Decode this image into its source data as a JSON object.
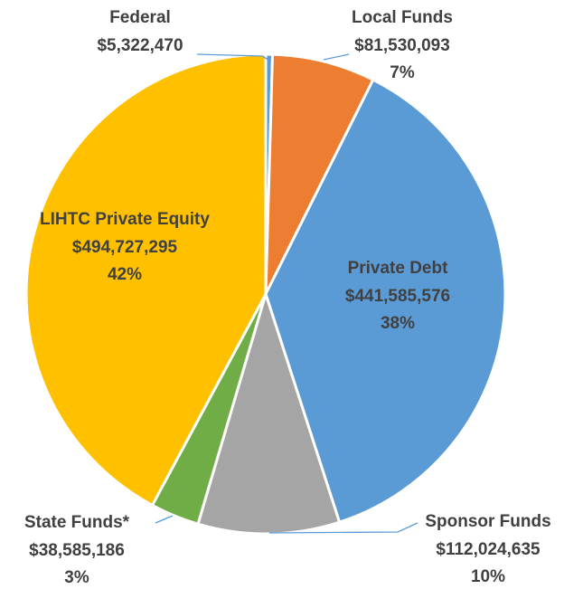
{
  "chart_data": {
    "type": "pie",
    "categories": [
      "Federal",
      "Local Funds",
      "Private Debt",
      "Sponsor Funds",
      "State Funds*",
      "LIHTC Private Equity"
    ],
    "values": [
      5322470,
      81530093,
      441585576,
      112024635,
      38585186,
      494727295
    ],
    "value_labels": [
      "$5,322,470",
      "$81,530,093",
      "$441,585,576",
      "$112,024,635",
      "$38,585,186",
      "$494,727,295"
    ],
    "percent_labels": [
      null,
      "7%",
      "38%",
      "10%",
      "3%",
      "42%"
    ],
    "colors": [
      "#5b9bd5",
      "#ed7d31",
      "#5b9bd5",
      "#a5a5a5",
      "#70ad47",
      "#ffc000"
    ]
  }
}
